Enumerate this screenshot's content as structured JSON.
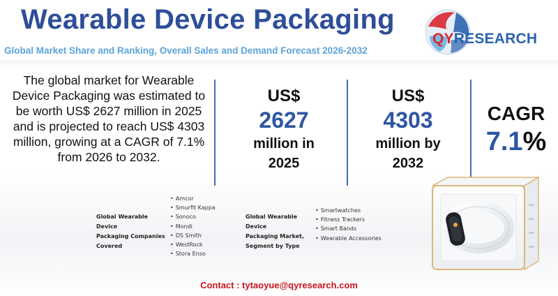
{
  "header": {
    "title": "Wearable Device Packaging",
    "subtitle": "Global Market Share and Ranking, Overall Sales and Demand Forecast 2026-2032"
  },
  "logo": {
    "prefix": "QY",
    "suffix": "RESEARCH",
    "globe_colors": [
      "#d8282c",
      "#2a63ad",
      "#6fb3e0"
    ]
  },
  "intro": {
    "text": "The global market for Wearable Device Packaging was estimated to be worth US$ 2627 million in 2025 and is projected to reach US$ 4303 million, growing at a CAGR of 7.1% from 2026 to 2032."
  },
  "stats": [
    {
      "currency": "US$",
      "value": "2627",
      "line1": "million in",
      "line2": "2025"
    },
    {
      "currency": "US$",
      "value": "4303",
      "line1": "million by",
      "line2": "2032"
    }
  ],
  "cagr": {
    "label": "CAGR",
    "value": "7.1",
    "sign": "%"
  },
  "companies": {
    "label_lines": [
      "Global Wearable Device",
      "Packaging Companies",
      "Covered"
    ],
    "items": [
      "Amcor",
      "Smurfit Kappa",
      "Sonoco",
      "Mondi",
      "DS Smith",
      "WestRock",
      "Stora Enso"
    ]
  },
  "segments": {
    "label_lines": [
      "Global Wearable Device",
      "Packaging Market,",
      "Segment by Type"
    ],
    "items": [
      "Smartwatches",
      "Fitness Trackers",
      "Smart Bands",
      "Wearable Accessories"
    ]
  },
  "contact": {
    "text": "Contact : tytaoyue@qyresearch.com"
  },
  "colors": {
    "title": "#2e4e98",
    "subtitle": "#5ba3d9",
    "accent_blue": "#2e55a3",
    "contact_red": "#c8151d",
    "divider": "#3d6fb6",
    "box_gold": "#d9b77a"
  }
}
